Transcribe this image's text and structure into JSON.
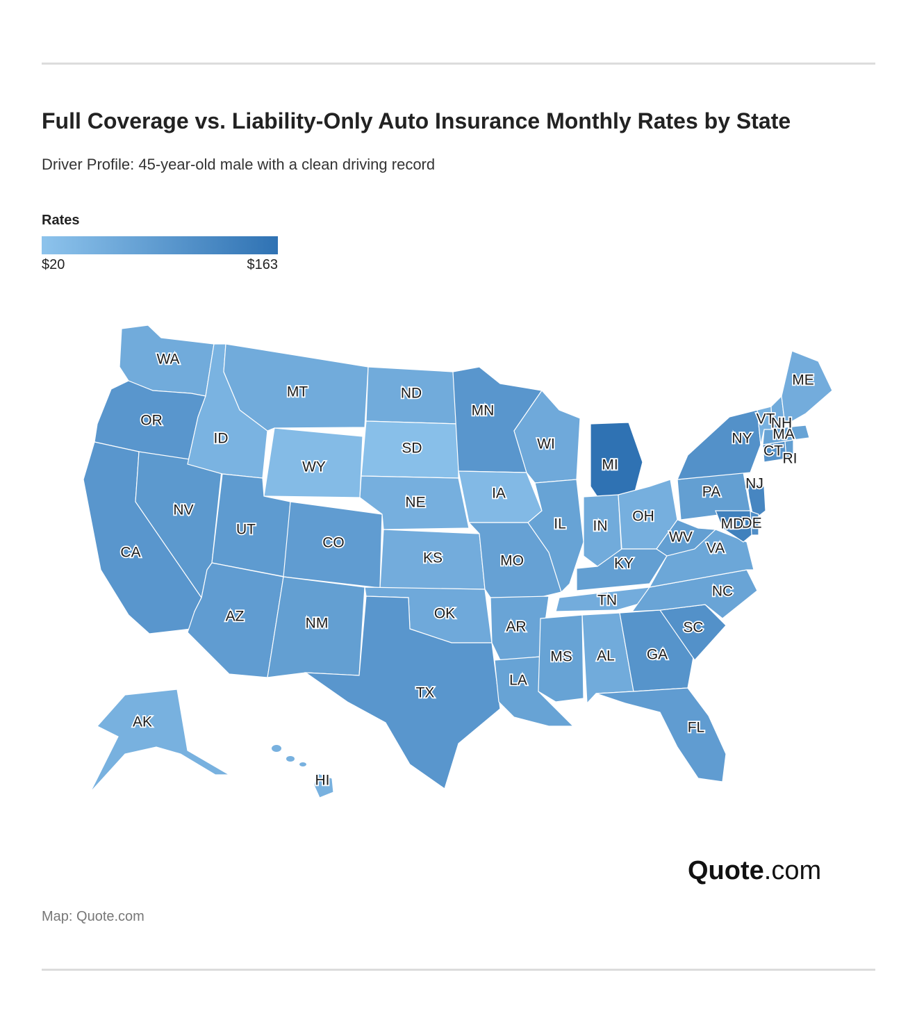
{
  "title": "Full Coverage vs. Liability-Only Auto Insurance Monthly Rates by State",
  "subtitle": "Driver Profile: 45-year-old male with a clean driving record",
  "legend": {
    "title": "Rates",
    "min_label": "$20",
    "max_label": "$163",
    "min_color": "#8dc3ec",
    "max_color": "#2f72b3"
  },
  "colors": {
    "background": "#ffffff",
    "state_border": "#ffffff"
  },
  "logo": {
    "brand": "Quote",
    "suffix": ".com"
  },
  "source": "Map: Quote.com",
  "states": [
    {
      "code": "WA",
      "level": 0.3
    },
    {
      "code": "OR",
      "level": 0.55
    },
    {
      "code": "CA",
      "level": 0.55
    },
    {
      "code": "NV",
      "level": 0.52
    },
    {
      "code": "ID",
      "level": 0.2
    },
    {
      "code": "MT",
      "level": 0.3
    },
    {
      "code": "WY",
      "level": 0.1
    },
    {
      "code": "UT",
      "level": 0.5
    },
    {
      "code": "CO",
      "level": 0.48
    },
    {
      "code": "AZ",
      "level": 0.48
    },
    {
      "code": "NM",
      "level": 0.45
    },
    {
      "code": "ND",
      "level": 0.3
    },
    {
      "code": "SD",
      "level": 0.05
    },
    {
      "code": "NE",
      "level": 0.25
    },
    {
      "code": "KS",
      "level": 0.28
    },
    {
      "code": "OK",
      "level": 0.32
    },
    {
      "code": "TX",
      "level": 0.55
    },
    {
      "code": "MN",
      "level": 0.55
    },
    {
      "code": "IA",
      "level": 0.12
    },
    {
      "code": "MO",
      "level": 0.42
    },
    {
      "code": "AR",
      "level": 0.38
    },
    {
      "code": "LA",
      "level": 0.4
    },
    {
      "code": "WI",
      "level": 0.32
    },
    {
      "code": "IL",
      "level": 0.4
    },
    {
      "code": "MI",
      "level": 1.0
    },
    {
      "code": "IN",
      "level": 0.3
    },
    {
      "code": "OH",
      "level": 0.25
    },
    {
      "code": "KY",
      "level": 0.45
    },
    {
      "code": "TN",
      "level": 0.28
    },
    {
      "code": "MS",
      "level": 0.4
    },
    {
      "code": "AL",
      "level": 0.3
    },
    {
      "code": "GA",
      "level": 0.58
    },
    {
      "code": "FL",
      "level": 0.48
    },
    {
      "code": "SC",
      "level": 0.62
    },
    {
      "code": "NC",
      "level": 0.38
    },
    {
      "code": "VA",
      "level": 0.35
    },
    {
      "code": "WV",
      "level": 0.45
    },
    {
      "code": "PA",
      "level": 0.45
    },
    {
      "code": "NY",
      "level": 0.62
    },
    {
      "code": "NJ",
      "level": 0.75
    },
    {
      "code": "DE",
      "level": 0.65
    },
    {
      "code": "MD",
      "level": 0.82
    },
    {
      "code": "CT",
      "level": 0.6
    },
    {
      "code": "RI",
      "level": 0.45
    },
    {
      "code": "MA",
      "level": 0.4
    },
    {
      "code": "VT",
      "level": 0.22
    },
    {
      "code": "NH",
      "level": 0.3
    },
    {
      "code": "ME",
      "level": 0.28
    },
    {
      "code": "AK",
      "level": 0.22
    },
    {
      "code": "HI",
      "level": 0.22
    }
  ]
}
